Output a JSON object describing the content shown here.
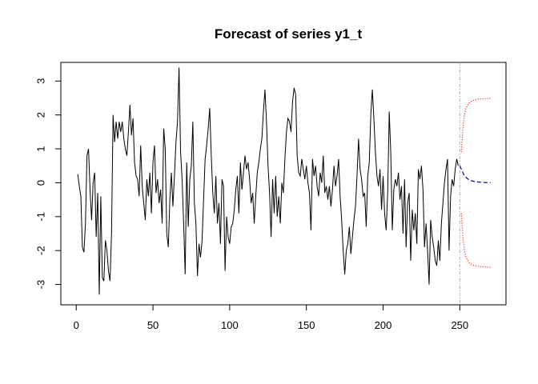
{
  "chart_data": {
    "type": "line",
    "title": "Forecast of series y1_t",
    "xlabel": "",
    "ylabel": "",
    "xlim": [
      0,
      270
    ],
    "ylim": [
      -3.4,
      3.4
    ],
    "x_ticks": [
      0,
      50,
      100,
      150,
      200,
      250
    ],
    "y_ticks": [
      -3,
      -2,
      -1,
      0,
      1,
      2,
      3
    ],
    "grid": false,
    "forecast_origin": 250,
    "series": [
      {
        "role": "observed",
        "color": "#000000",
        "x_start": 1,
        "values": [
          0.25,
          -0.1,
          -0.4,
          -1.9,
          -2.05,
          -1.2,
          0.8,
          1.0,
          -0.2,
          -1.1,
          0.0,
          0.3,
          -1.6,
          -0.3,
          -3.3,
          -0.4,
          -2.8,
          -2.9,
          -1.7,
          -2.0,
          -2.6,
          -2.9,
          -1.5,
          2.0,
          1.2,
          1.8,
          1.3,
          1.8,
          1.5,
          1.8,
          1.3,
          1.0,
          0.8,
          1.5,
          2.3,
          1.4,
          1.9,
          0.6,
          0.2,
          0.1,
          -0.4,
          1.1,
          -0.1,
          -0.6,
          -1.1,
          0.1,
          -0.4,
          0.3,
          -0.9,
          0.6,
          1.1,
          -0.3,
          0.1,
          -0.6,
          -0.2,
          -1.2,
          1.6,
          1.0,
          -1.5,
          -1.9,
          -0.5,
          0.3,
          -0.7,
          0.2,
          1.2,
          1.8,
          3.4,
          0.9,
          0.1,
          -1.2,
          -2.7,
          0.6,
          -1.3,
          0.1,
          0.5,
          1.8,
          -0.6,
          -1.2,
          -2.75,
          -1.8,
          -2.2,
          -1.7,
          -0.5,
          0.7,
          1.1,
          1.6,
          2.2,
          0.8,
          -0.3,
          -0.9,
          0.2,
          -1.2,
          -0.6,
          -1.8,
          0.1,
          -0.1,
          -2.6,
          -1.0,
          -1.6,
          -1.8,
          -1.3,
          -1.2,
          -0.8,
          -0.2,
          0.2,
          -0.9,
          0.6,
          -0.2,
          0.3,
          0.8,
          0.4,
          0.6,
          0.1,
          -0.6,
          -0.3,
          -1.2,
          -0.4,
          0.3,
          0.6,
          1.0,
          1.3,
          2.1,
          2.75,
          1.8,
          0.5,
          -0.3,
          -1.6,
          0.1,
          -0.9,
          0.2,
          -1.0,
          -0.4,
          -1.2,
          0.0,
          -0.3,
          0.7,
          1.5,
          1.9,
          1.8,
          1.5,
          2.4,
          2.8,
          2.6,
          0.8,
          0.3,
          0.2,
          0.7,
          0.4,
          0.1,
          0.5,
          0.0,
          -0.3,
          -1.4,
          0.7,
          0.2,
          0.5,
          -0.1,
          -0.4,
          0.3,
          0.0,
          0.8,
          -0.3,
          -0.1,
          -0.5,
          -0.1,
          -0.7,
          -0.2,
          0.5,
          -0.1,
          0.2,
          0.7,
          -0.4,
          -1.1,
          -2.0,
          -2.7,
          -2.0,
          -1.8,
          -1.3,
          -2.1,
          -1.6,
          -1.1,
          -0.7,
          0.2,
          1.3,
          0.4,
          0.1,
          -0.4,
          -0.3,
          -1.3,
          0.2,
          0.6,
          2.0,
          2.75,
          1.9,
          0.9,
          0.2,
          -0.1,
          0.4,
          -0.8,
          0.2,
          -0.9,
          -1.4,
          -0.3,
          2.1,
          0.9,
          -1.4,
          -0.2,
          0.1,
          -0.1,
          0.3,
          -0.5,
          -0.1,
          -1.5,
          0.1,
          -1.9,
          -0.6,
          -0.3,
          -2.3,
          -0.8,
          -1.4,
          -0.9,
          -1.8,
          0.4,
          0.1,
          0.5,
          -0.2,
          -1.9,
          -1.2,
          -2.0,
          -3.0,
          -1.1,
          -1.6,
          -1.9,
          -2.3,
          -2.45,
          -1.7,
          -2.3,
          -1.2,
          -0.6,
          0.0,
          0.4,
          0.7,
          -2.0,
          -0.4,
          0.1,
          -0.1,
          0.4,
          0.7,
          0.5
        ]
      },
      {
        "role": "forecast",
        "color": "#00008b",
        "x": [
          250,
          253,
          256,
          260,
          265,
          270
        ],
        "values": [
          0.5,
          0.2,
          0.08,
          0.03,
          0.01,
          0.0
        ]
      },
      {
        "role": "upper-interval",
        "color": "#ff0000",
        "x": [
          251,
          252,
          253,
          254,
          256,
          258,
          262,
          266,
          270
        ],
        "values": [
          0.9,
          1.6,
          2.0,
          2.2,
          2.35,
          2.42,
          2.47,
          2.48,
          2.49
        ]
      },
      {
        "role": "lower-interval",
        "color": "#ff0000",
        "x": [
          251,
          252,
          253,
          254,
          256,
          258,
          262,
          266,
          270
        ],
        "values": [
          -0.9,
          -1.6,
          -2.0,
          -2.2,
          -2.35,
          -2.42,
          -2.47,
          -2.48,
          -2.49
        ]
      }
    ]
  }
}
